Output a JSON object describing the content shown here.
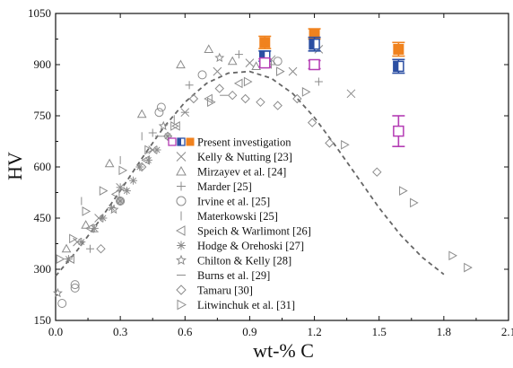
{
  "chart_data": {
    "type": "scatter",
    "xlabel": "wt-% C",
    "ylabel": "HV",
    "xlim": [
      0.0,
      2.1
    ],
    "ylim": [
      150,
      1050
    ],
    "xticks": [
      "0.0",
      "0.3",
      "0.6",
      "0.9",
      "1.2",
      "1.5",
      "1.8",
      "2.1"
    ],
    "yticks": [
      "150",
      "300",
      "450",
      "600",
      "750",
      "900",
      "1050"
    ],
    "grid": false,
    "legend_position": "center",
    "colors": {
      "orange": "#f0821e",
      "blue": "#2b4ea2",
      "magenta": "#b43cb4",
      "grey": "#8c8c8c"
    },
    "trend_curve": {
      "style": "dashed",
      "x": [
        0.0,
        0.1,
        0.2,
        0.3,
        0.4,
        0.5,
        0.6,
        0.7,
        0.8,
        0.9,
        1.0,
        1.1,
        1.2,
        1.3,
        1.4,
        1.5,
        1.6,
        1.7,
        1.8
      ],
      "y": [
        280,
        355,
        440,
        530,
        625,
        715,
        790,
        845,
        875,
        880,
        860,
        815,
        745,
        660,
        570,
        480,
        400,
        335,
        285
      ]
    },
    "present_investigation": [
      {
        "x": 0.97,
        "y": 965,
        "err": 18,
        "style": "orange"
      },
      {
        "x": 0.97,
        "y": 925,
        "err": 15,
        "style": "blue"
      },
      {
        "x": 0.97,
        "y": 905,
        "err": 12,
        "style": "magenta"
      },
      {
        "x": 1.2,
        "y": 990,
        "err": 15,
        "style": "orange"
      },
      {
        "x": 1.2,
        "y": 960,
        "err": 20,
        "style": "blue"
      },
      {
        "x": 1.2,
        "y": 900,
        "err": 12,
        "style": "magenta"
      },
      {
        "x": 1.59,
        "y": 945,
        "err": 20,
        "style": "orange"
      },
      {
        "x": 1.59,
        "y": 895,
        "err": 20,
        "style": "blue"
      },
      {
        "x": 1.59,
        "y": 705,
        "err": 45,
        "style": "magenta"
      }
    ],
    "series": [
      {
        "name": "Present investigation",
        "marker": "present",
        "x": [],
        "y": []
      },
      {
        "name": "Kelly & Nutting [23]",
        "marker": "x",
        "x": [
          0.1,
          0.2,
          0.3,
          0.45,
          0.6,
          0.75,
          0.9,
          1.0,
          1.1,
          1.22,
          1.37
        ],
        "y": [
          380,
          450,
          540,
          650,
          760,
          880,
          905,
          915,
          880,
          945,
          815
        ]
      },
      {
        "name": "Mirzayev et al. [24]",
        "marker": "triangle-up",
        "x": [
          0.05,
          0.14,
          0.25,
          0.4,
          0.58,
          0.71,
          0.82,
          0.93
        ],
        "y": [
          360,
          430,
          610,
          755,
          900,
          945,
          910,
          895
        ]
      },
      {
        "name": "Marder [25]",
        "marker": "plus",
        "x": [
          0.16,
          0.3,
          0.45,
          0.62,
          0.85,
          1.0,
          1.22
        ],
        "y": [
          360,
          540,
          700,
          840,
          930,
          900,
          850
        ]
      },
      {
        "name": "Irvine et al. [25]",
        "marker": "circle",
        "x": [
          0.03,
          0.09,
          0.09,
          0.3,
          0.48,
          0.49,
          0.68,
          1.03
        ],
        "y": [
          200,
          245,
          255,
          500,
          760,
          775,
          870,
          910
        ]
      },
      {
        "name": "Materkowski [25]",
        "marker": "vbar",
        "x": [
          0.12,
          0.3,
          0.4,
          0.55
        ],
        "y": [
          500,
          620,
          690,
          740
        ]
      },
      {
        "name": "Speich & Warlimont [26]",
        "marker": "triangle-left",
        "x": [
          0.07,
          0.16,
          0.28,
          0.42,
          0.56,
          0.71,
          0.85
        ],
        "y": [
          330,
          420,
          520,
          620,
          720,
          800,
          845
        ]
      },
      {
        "name": "Hodge & Orehoski [27]",
        "marker": "asterisk",
        "x": [
          0.06,
          0.12,
          0.18,
          0.22,
          0.26,
          0.3,
          0.33,
          0.36,
          0.39,
          0.43,
          0.47,
          0.52
        ],
        "y": [
          330,
          380,
          420,
          450,
          480,
          500,
          530,
          560,
          600,
          620,
          650,
          690
        ]
      },
      {
        "name": "Chilton & Kelly [28]",
        "marker": "star",
        "x": [
          0.01,
          0.27,
          0.5,
          0.76,
          0.97
        ],
        "y": [
          230,
          475,
          720,
          920,
          925
        ]
      },
      {
        "name": "Burns et al. [29]",
        "marker": "hbar",
        "x": [
          0.18,
          0.32,
          0.48,
          0.6,
          0.78
        ],
        "y": [
          410,
          535,
          690,
          760,
          810
        ]
      },
      {
        "name": "Tamaru [30]",
        "marker": "diamond",
        "x": [
          0.21,
          0.3,
          0.4,
          0.52,
          0.64,
          0.76,
          0.82,
          0.88,
          0.95,
          1.03,
          1.12,
          1.19,
          1.27,
          1.49
        ],
        "y": [
          360,
          500,
          600,
          690,
          800,
          830,
          810,
          800,
          790,
          780,
          800,
          730,
          670,
          585
        ]
      },
      {
        "name": "Litwinchuk et al. [31]",
        "marker": "triangle-right",
        "x": [
          0.02,
          0.08,
          0.14,
          0.22,
          0.31,
          0.43,
          0.55,
          0.72,
          0.89,
          1.04,
          1.16,
          1.34,
          1.61,
          1.66,
          1.84,
          1.91
        ],
        "y": [
          330,
          390,
          470,
          530,
          590,
          650,
          720,
          790,
          850,
          880,
          820,
          665,
          530,
          495,
          340,
          305
        ]
      }
    ]
  }
}
